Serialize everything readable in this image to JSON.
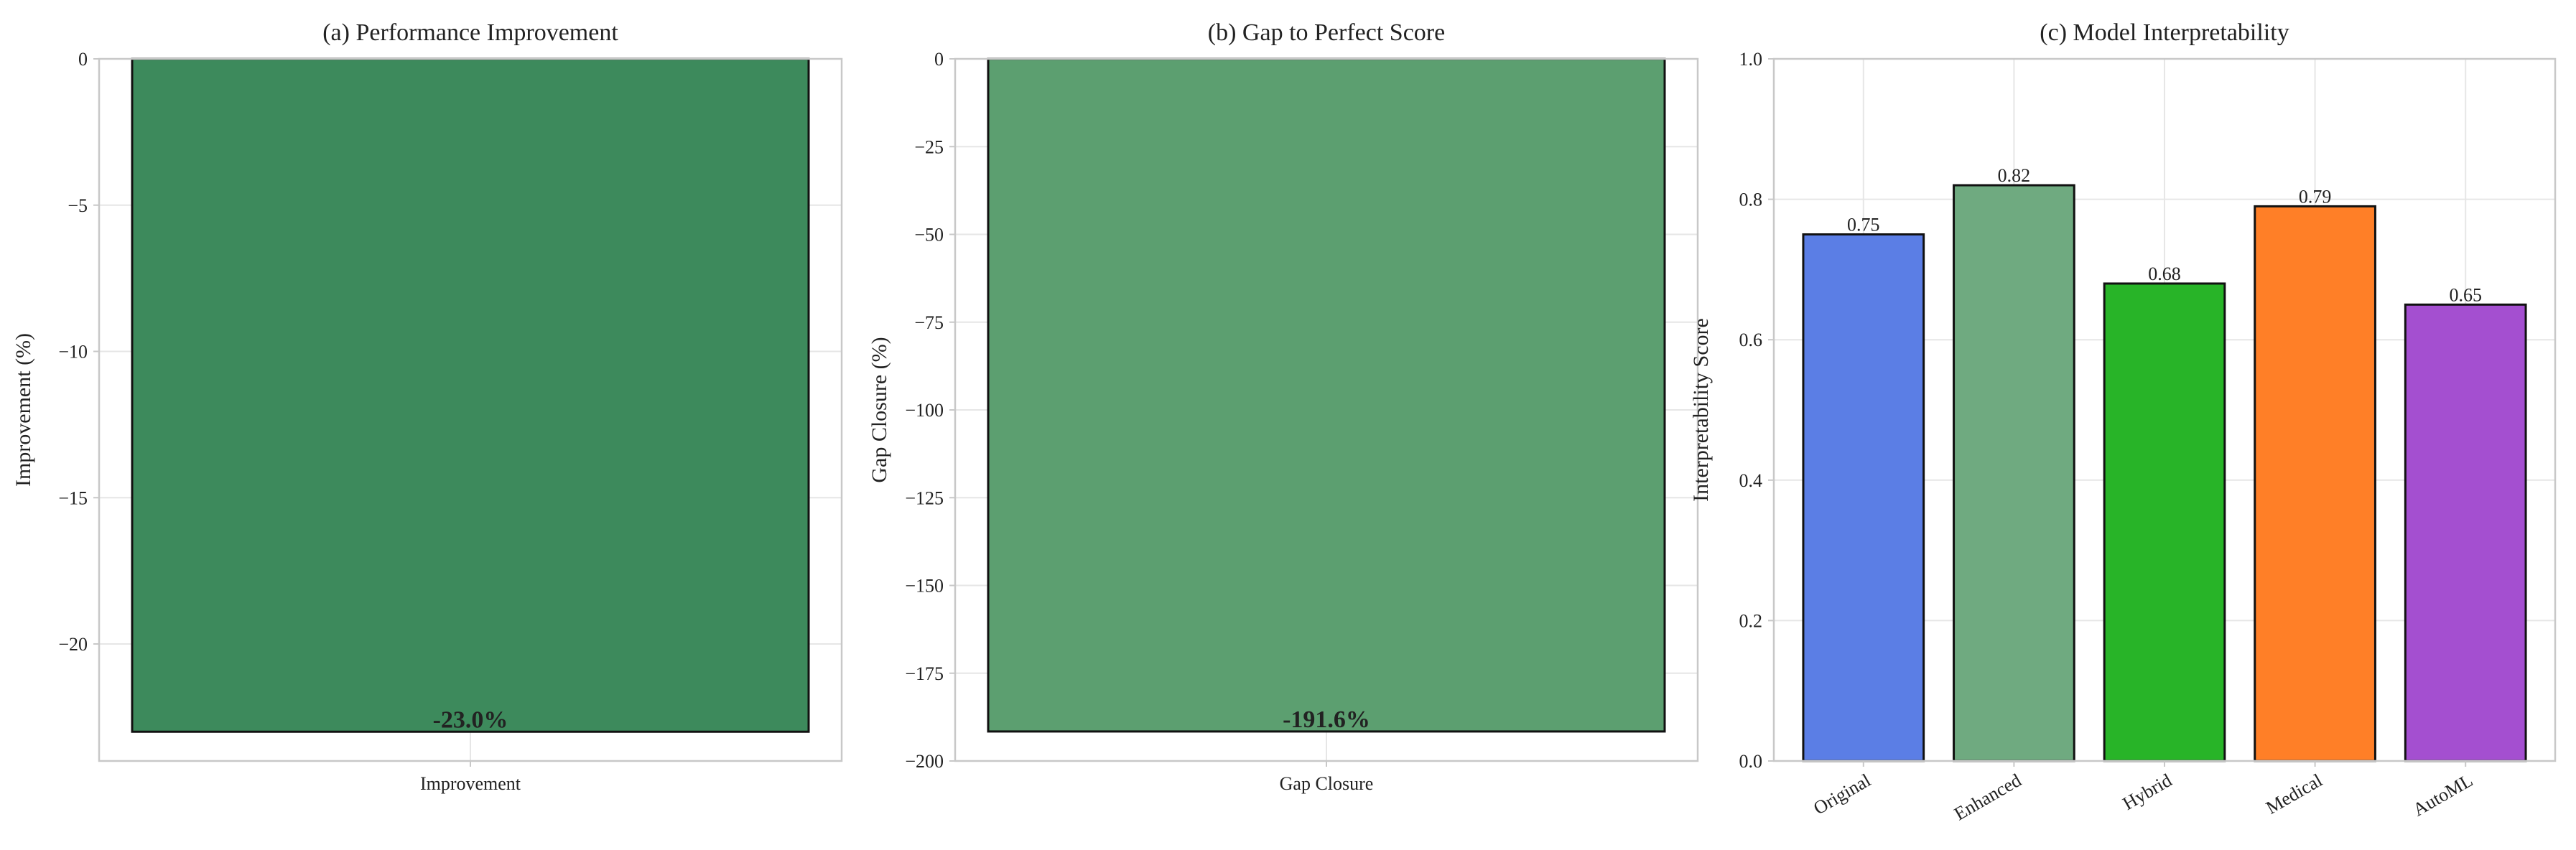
{
  "chart_data": [
    {
      "type": "bar",
      "title": "(a) Performance Improvement",
      "xlabel": "",
      "ylabel": "Improvement (%)",
      "categories": [
        "Improvement"
      ],
      "values": [
        -23.0
      ],
      "value_labels": [
        "-23.0%"
      ],
      "ylim": [
        -24,
        0
      ],
      "yticks": [
        0,
        -5,
        -10,
        -15,
        -20
      ],
      "ytick_labels": [
        "0",
        "−5",
        "−10",
        "−15",
        "−20"
      ],
      "colors": [
        "#3d8a5c"
      ],
      "grid": true
    },
    {
      "type": "bar",
      "title": "(b) Gap to Perfect Score",
      "xlabel": "",
      "ylabel": "Gap Closure (%)",
      "categories": [
        "Gap Closure"
      ],
      "values": [
        -191.6
      ],
      "value_labels": [
        "-191.6%"
      ],
      "ylim": [
        -200,
        0
      ],
      "yticks": [
        0,
        -25,
        -50,
        -75,
        -100,
        -125,
        -150,
        -175,
        -200
      ],
      "ytick_labels": [
        "0",
        "−25",
        "−50",
        "−75",
        "−100",
        "−125",
        "−150",
        "−175",
        "−200"
      ],
      "colors": [
        "#5c9f70"
      ],
      "grid": true
    },
    {
      "type": "bar",
      "title": "(c) Model Interpretability",
      "xlabel": "",
      "ylabel": "Interpretability Score",
      "categories": [
        "Original",
        "Enhanced",
        "Hybrid",
        "Medical",
        "AutoML"
      ],
      "values": [
        0.75,
        0.82,
        0.68,
        0.79,
        0.65
      ],
      "value_labels": [
        "0.75",
        "0.82",
        "0.68",
        "0.79",
        "0.65"
      ],
      "ylim": [
        0,
        1.0
      ],
      "yticks": [
        0,
        0.2,
        0.4,
        0.6,
        0.8,
        1.0
      ],
      "ytick_labels": [
        "0.0",
        "0.2",
        "0.4",
        "0.6",
        "0.8",
        "1.0"
      ],
      "colors": [
        "#5b7ee5",
        "#6faa80",
        "#28b428",
        "#ff7f27",
        "#a44fd0"
      ],
      "grid": true
    }
  ]
}
